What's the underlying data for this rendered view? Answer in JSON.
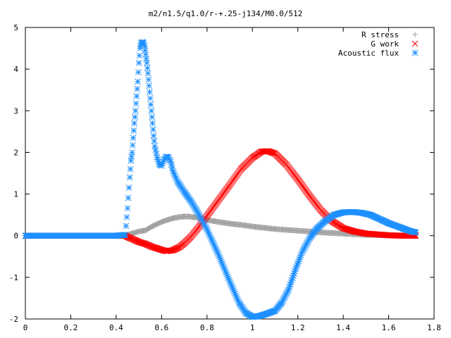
{
  "chart_data": {
    "type": "scatter",
    "title": "m2/n1.5/q1.0/r-+.25-j134/M0.0/512",
    "xlabel": "",
    "ylabel": "",
    "xlim": [
      0,
      1.8
    ],
    "ylim": [
      -2,
      5
    ],
    "x_ticks": [
      "0",
      "0.2",
      "0.4",
      "0.6",
      "0.8",
      "1",
      "1.2",
      "1.4",
      "1.6",
      "1.8"
    ],
    "y_ticks": [
      "-2",
      "-1",
      "0",
      "1",
      "2",
      "3",
      "4",
      "5"
    ],
    "grid": false,
    "legend_position": "top-right",
    "series": [
      {
        "name": "R stress",
        "marker": "plus",
        "color": "#a0a0a0",
        "points": [
          [
            0,
            0
          ],
          [
            0.1,
            0
          ],
          [
            0.2,
            0
          ],
          [
            0.3,
            0
          ],
          [
            0.4,
            0
          ],
          [
            0.44,
            0
          ],
          [
            0.45,
            0.02
          ],
          [
            0.48,
            0.07
          ],
          [
            0.5,
            0.1
          ],
          [
            0.53,
            0.13
          ],
          [
            0.55,
            0.2
          ],
          [
            0.58,
            0.28
          ],
          [
            0.6,
            0.33
          ],
          [
            0.62,
            0.37
          ],
          [
            0.65,
            0.42
          ],
          [
            0.68,
            0.45
          ],
          [
            0.7,
            0.46
          ],
          [
            0.72,
            0.46
          ],
          [
            0.75,
            0.44
          ],
          [
            0.8,
            0.38
          ],
          [
            0.85,
            0.33
          ],
          [
            0.9,
            0.29
          ],
          [
            0.95,
            0.26
          ],
          [
            1.0,
            0.22
          ],
          [
            1.05,
            0.19
          ],
          [
            1.1,
            0.16
          ],
          [
            1.2,
            0.12
          ],
          [
            1.3,
            0.08
          ],
          [
            1.4,
            0.05
          ],
          [
            1.5,
            0.02
          ],
          [
            1.6,
            0.01
          ],
          [
            1.72,
            0.0
          ]
        ]
      },
      {
        "name": "G work",
        "marker": "cross",
        "color": "#ff0000",
        "points": [
          [
            0,
            0
          ],
          [
            0.1,
            0
          ],
          [
            0.2,
            0
          ],
          [
            0.3,
            0
          ],
          [
            0.4,
            0
          ],
          [
            0.44,
            0
          ],
          [
            0.45,
            -0.03
          ],
          [
            0.48,
            -0.1
          ],
          [
            0.5,
            -0.15
          ],
          [
            0.53,
            -0.2
          ],
          [
            0.56,
            -0.27
          ],
          [
            0.6,
            -0.34
          ],
          [
            0.62,
            -0.37
          ],
          [
            0.65,
            -0.35
          ],
          [
            0.68,
            -0.27
          ],
          [
            0.7,
            -0.18
          ],
          [
            0.73,
            -0.02
          ],
          [
            0.76,
            0.18
          ],
          [
            0.8,
            0.48
          ],
          [
            0.85,
            0.85
          ],
          [
            0.9,
            1.22
          ],
          [
            0.95,
            1.6
          ],
          [
            1.0,
            1.87
          ],
          [
            1.04,
            2.02
          ],
          [
            1.07,
            2.03
          ],
          [
            1.1,
            1.97
          ],
          [
            1.15,
            1.7
          ],
          [
            1.2,
            1.35
          ],
          [
            1.25,
            0.97
          ],
          [
            1.3,
            0.62
          ],
          [
            1.35,
            0.35
          ],
          [
            1.4,
            0.18
          ],
          [
            1.45,
            0.1
          ],
          [
            1.5,
            0.05
          ],
          [
            1.55,
            0.03
          ],
          [
            1.6,
            0.01
          ],
          [
            1.65,
            0.0
          ],
          [
            1.72,
            0.0
          ]
        ]
      },
      {
        "name": "Acoustic flux",
        "marker": "star",
        "color": "#1e90ff",
        "points": [
          [
            0,
            0
          ],
          [
            0.1,
            0
          ],
          [
            0.2,
            0
          ],
          [
            0.3,
            0
          ],
          [
            0.4,
            0
          ],
          [
            0.44,
            0.02
          ],
          [
            0.45,
            0.66
          ],
          [
            0.46,
            1.4
          ],
          [
            0.465,
            1.8
          ],
          [
            0.47,
            2.0
          ],
          [
            0.475,
            2.35
          ],
          [
            0.48,
            2.7
          ],
          [
            0.485,
            3.0
          ],
          [
            0.49,
            3.35
          ],
          [
            0.495,
            3.7
          ],
          [
            0.5,
            4.15
          ],
          [
            0.505,
            4.5
          ],
          [
            0.51,
            4.62
          ],
          [
            0.515,
            4.65
          ],
          [
            0.52,
            4.63
          ],
          [
            0.525,
            4.55
          ],
          [
            0.53,
            4.35
          ],
          [
            0.535,
            4.15
          ],
          [
            0.54,
            3.9
          ],
          [
            0.545,
            3.6
          ],
          [
            0.55,
            3.3
          ],
          [
            0.555,
            3.0
          ],
          [
            0.56,
            2.7
          ],
          [
            0.565,
            2.4
          ],
          [
            0.57,
            2.15
          ],
          [
            0.58,
            1.88
          ],
          [
            0.59,
            1.72
          ],
          [
            0.6,
            1.68
          ],
          [
            0.61,
            1.82
          ],
          [
            0.62,
            1.9
          ],
          [
            0.63,
            1.88
          ],
          [
            0.64,
            1.78
          ],
          [
            0.65,
            1.55
          ],
          [
            0.67,
            1.3
          ],
          [
            0.7,
            1.05
          ],
          [
            0.73,
            0.82
          ],
          [
            0.76,
            0.55
          ],
          [
            0.8,
            0.15
          ],
          [
            0.85,
            -0.45
          ],
          [
            0.9,
            -1.1
          ],
          [
            0.94,
            -1.6
          ],
          [
            0.97,
            -1.85
          ],
          [
            1.0,
            -1.95
          ],
          [
            1.03,
            -1.93
          ],
          [
            1.06,
            -1.88
          ],
          [
            1.1,
            -1.8
          ],
          [
            1.13,
            -1.6
          ],
          [
            1.16,
            -1.28
          ],
          [
            1.19,
            -0.8
          ],
          [
            1.22,
            -0.38
          ],
          [
            1.25,
            -0.08
          ],
          [
            1.28,
            0.15
          ],
          [
            1.32,
            0.35
          ],
          [
            1.36,
            0.5
          ],
          [
            1.4,
            0.56
          ],
          [
            1.44,
            0.57
          ],
          [
            1.48,
            0.55
          ],
          [
            1.52,
            0.5
          ],
          [
            1.56,
            0.4
          ],
          [
            1.6,
            0.3
          ],
          [
            1.65,
            0.2
          ],
          [
            1.7,
            0.1
          ],
          [
            1.72,
            0.08
          ]
        ]
      }
    ]
  }
}
